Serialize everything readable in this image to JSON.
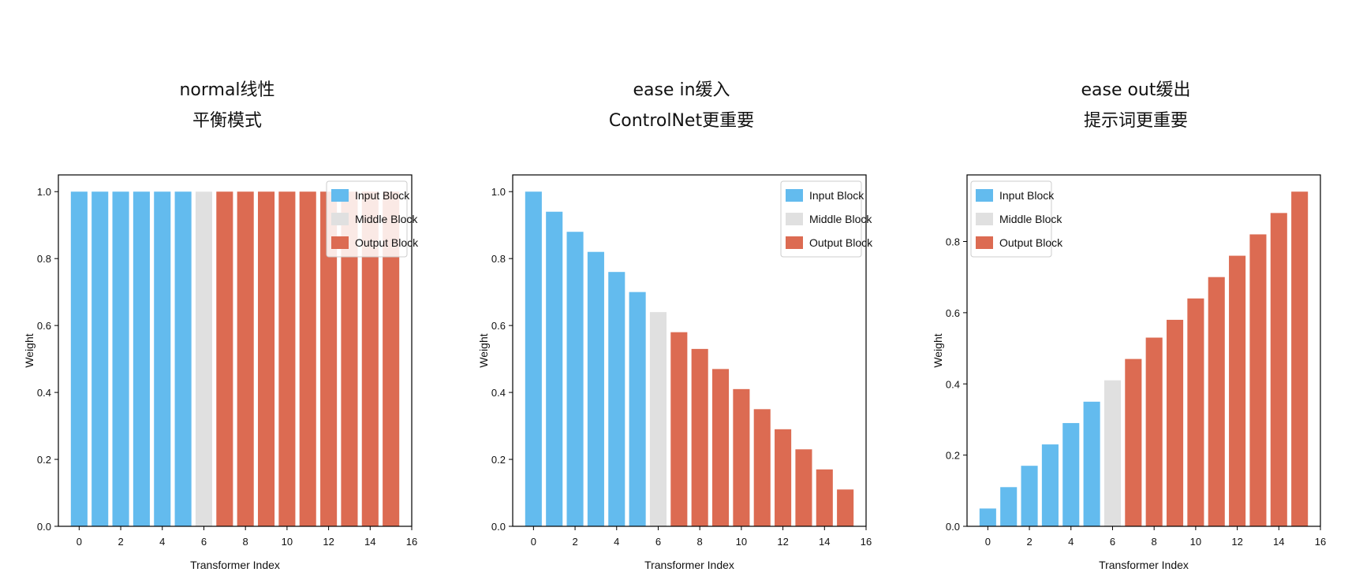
{
  "colors": {
    "input": "#63bbee",
    "middle": "#e0e0e0",
    "output": "#dc6b52"
  },
  "chart_data": [
    {
      "type": "bar",
      "title_line1": "normal线性",
      "title_line2": "平衡模式",
      "xlabel": "Transformer Index",
      "ylabel": "Weight",
      "categories": [
        0,
        1,
        2,
        3,
        4,
        5,
        6,
        7,
        8,
        9,
        10,
        11,
        12,
        13,
        14,
        15
      ],
      "values": [
        1.0,
        1.0,
        1.0,
        1.0,
        1.0,
        1.0,
        1.0,
        1.0,
        1.0,
        1.0,
        1.0,
        1.0,
        1.0,
        1.0,
        1.0,
        1.0
      ],
      "groups": [
        "input",
        "input",
        "input",
        "input",
        "input",
        "input",
        "middle",
        "output",
        "output",
        "output",
        "output",
        "output",
        "output",
        "output",
        "output",
        "output"
      ],
      "xlim": [
        -1,
        16
      ],
      "ylim": [
        0,
        1.05
      ],
      "xticks": [
        "0",
        "2",
        "4",
        "6",
        "8",
        "10",
        "12",
        "14",
        "16"
      ],
      "yticks": [
        "0.0",
        "0.2",
        "0.4",
        "0.6",
        "0.8",
        "1.0"
      ],
      "legend": [
        "Input Block",
        "Middle Block",
        "Output Block"
      ],
      "legend_position": "top-right"
    },
    {
      "type": "bar",
      "title_line1": "ease in缓入",
      "title_line2": "ControlNet更重要",
      "xlabel": "Transformer Index",
      "ylabel": "Weight",
      "categories": [
        0,
        1,
        2,
        3,
        4,
        5,
        6,
        7,
        8,
        9,
        10,
        11,
        12,
        13,
        14,
        15
      ],
      "values": [
        1.0,
        0.94,
        0.88,
        0.82,
        0.76,
        0.7,
        0.64,
        0.58,
        0.53,
        0.47,
        0.41,
        0.35,
        0.29,
        0.23,
        0.17,
        0.11
      ],
      "groups": [
        "input",
        "input",
        "input",
        "input",
        "input",
        "input",
        "middle",
        "output",
        "output",
        "output",
        "output",
        "output",
        "output",
        "output",
        "output",
        "output"
      ],
      "xlim": [
        -1,
        16
      ],
      "ylim": [
        0,
        1.05
      ],
      "xticks": [
        "0",
        "2",
        "4",
        "6",
        "8",
        "10",
        "12",
        "14",
        "16"
      ],
      "yticks": [
        "0.0",
        "0.2",
        "0.4",
        "0.6",
        "0.8",
        "1.0"
      ],
      "legend": [
        "Input Block",
        "Middle Block",
        "Output Block"
      ],
      "legend_position": "top-right"
    },
    {
      "type": "bar",
      "title_line1": "ease out缓出",
      "title_line2": "提示词更重要",
      "xlabel": "Transformer Index",
      "ylabel": "Weight",
      "categories": [
        0,
        1,
        2,
        3,
        4,
        5,
        6,
        7,
        8,
        9,
        10,
        11,
        12,
        13,
        14,
        15
      ],
      "values": [
        0.05,
        0.11,
        0.17,
        0.23,
        0.29,
        0.35,
        0.41,
        0.47,
        0.53,
        0.58,
        0.64,
        0.7,
        0.76,
        0.82,
        0.88,
        0.94
      ],
      "groups": [
        "input",
        "input",
        "input",
        "input",
        "input",
        "input",
        "middle",
        "output",
        "output",
        "output",
        "output",
        "output",
        "output",
        "output",
        "output",
        "output"
      ],
      "xlim": [
        -1,
        16
      ],
      "ylim": [
        0,
        0.987
      ],
      "xticks": [
        "0",
        "2",
        "4",
        "6",
        "8",
        "10",
        "12",
        "14",
        "16"
      ],
      "yticks": [
        "0.0",
        "0.2",
        "0.4",
        "0.6",
        "0.8"
      ],
      "legend": [
        "Input Block",
        "Middle Block",
        "Output Block"
      ],
      "legend_position": "top-left"
    }
  ]
}
